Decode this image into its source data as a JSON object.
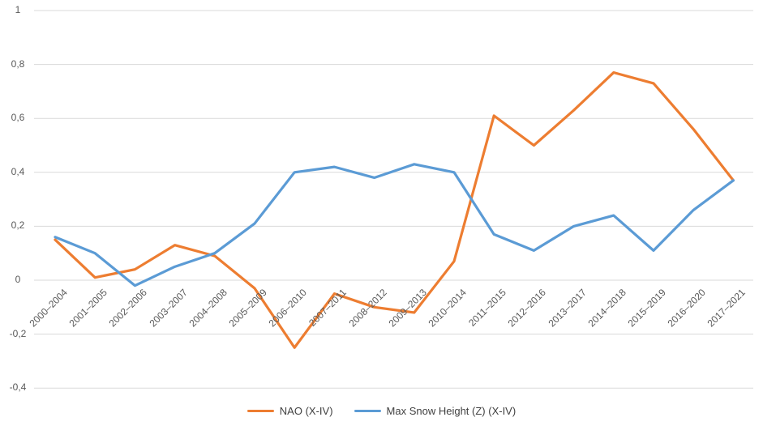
{
  "chart_data": {
    "type": "line",
    "categories": [
      "2000–2004",
      "2001–2005",
      "2002–2006",
      "2003–2007",
      "2004–2008",
      "2005–2009",
      "2006–2010",
      "2007–2011",
      "2008–2012",
      "2009–2013",
      "2010–2014",
      "2011–2015",
      "2012–2016",
      "2013–2017",
      "2014–2018",
      "2015–2019",
      "2016–2020",
      "2017–2021"
    ],
    "series": [
      {
        "name": "NAO (X-IV)",
        "color": "#ED7D31",
        "values": [
          0.15,
          0.01,
          0.04,
          0.13,
          0.09,
          -0.03,
          -0.25,
          -0.05,
          -0.1,
          -0.12,
          0.07,
          0.61,
          0.5,
          0.63,
          0.77,
          0.73,
          0.56,
          0.37
        ]
      },
      {
        "name": "Max Snow Height (Z) (X-IV)",
        "color": "#5B9BD5",
        "values": [
          0.16,
          0.1,
          -0.02,
          0.05,
          0.1,
          0.21,
          0.4,
          0.42,
          0.38,
          0.43,
          0.4,
          0.17,
          0.11,
          0.2,
          0.24,
          0.11,
          0.26,
          0.37
        ]
      }
    ],
    "title": "",
    "xlabel": "",
    "ylabel": "",
    "ylim": [
      -0.4,
      1
    ],
    "y_ticks": [
      1,
      0.8,
      0.6,
      0.4,
      0.2,
      0,
      -0.2,
      -0.4
    ],
    "y_tick_labels": [
      "1",
      "0,8",
      "0,6",
      "0,4",
      "0,2",
      "0",
      "-0,2",
      "-0,4"
    ],
    "decimal_separator": ",",
    "grid": true,
    "legend_position": "bottom-center"
  },
  "colors": {
    "background": "#FFFFFF",
    "gridline": "#D9D9D9",
    "axis_text": "#595959",
    "legend_text": "#404040",
    "nao_line": "#ED7D31",
    "snow_line": "#5B9BD5"
  }
}
